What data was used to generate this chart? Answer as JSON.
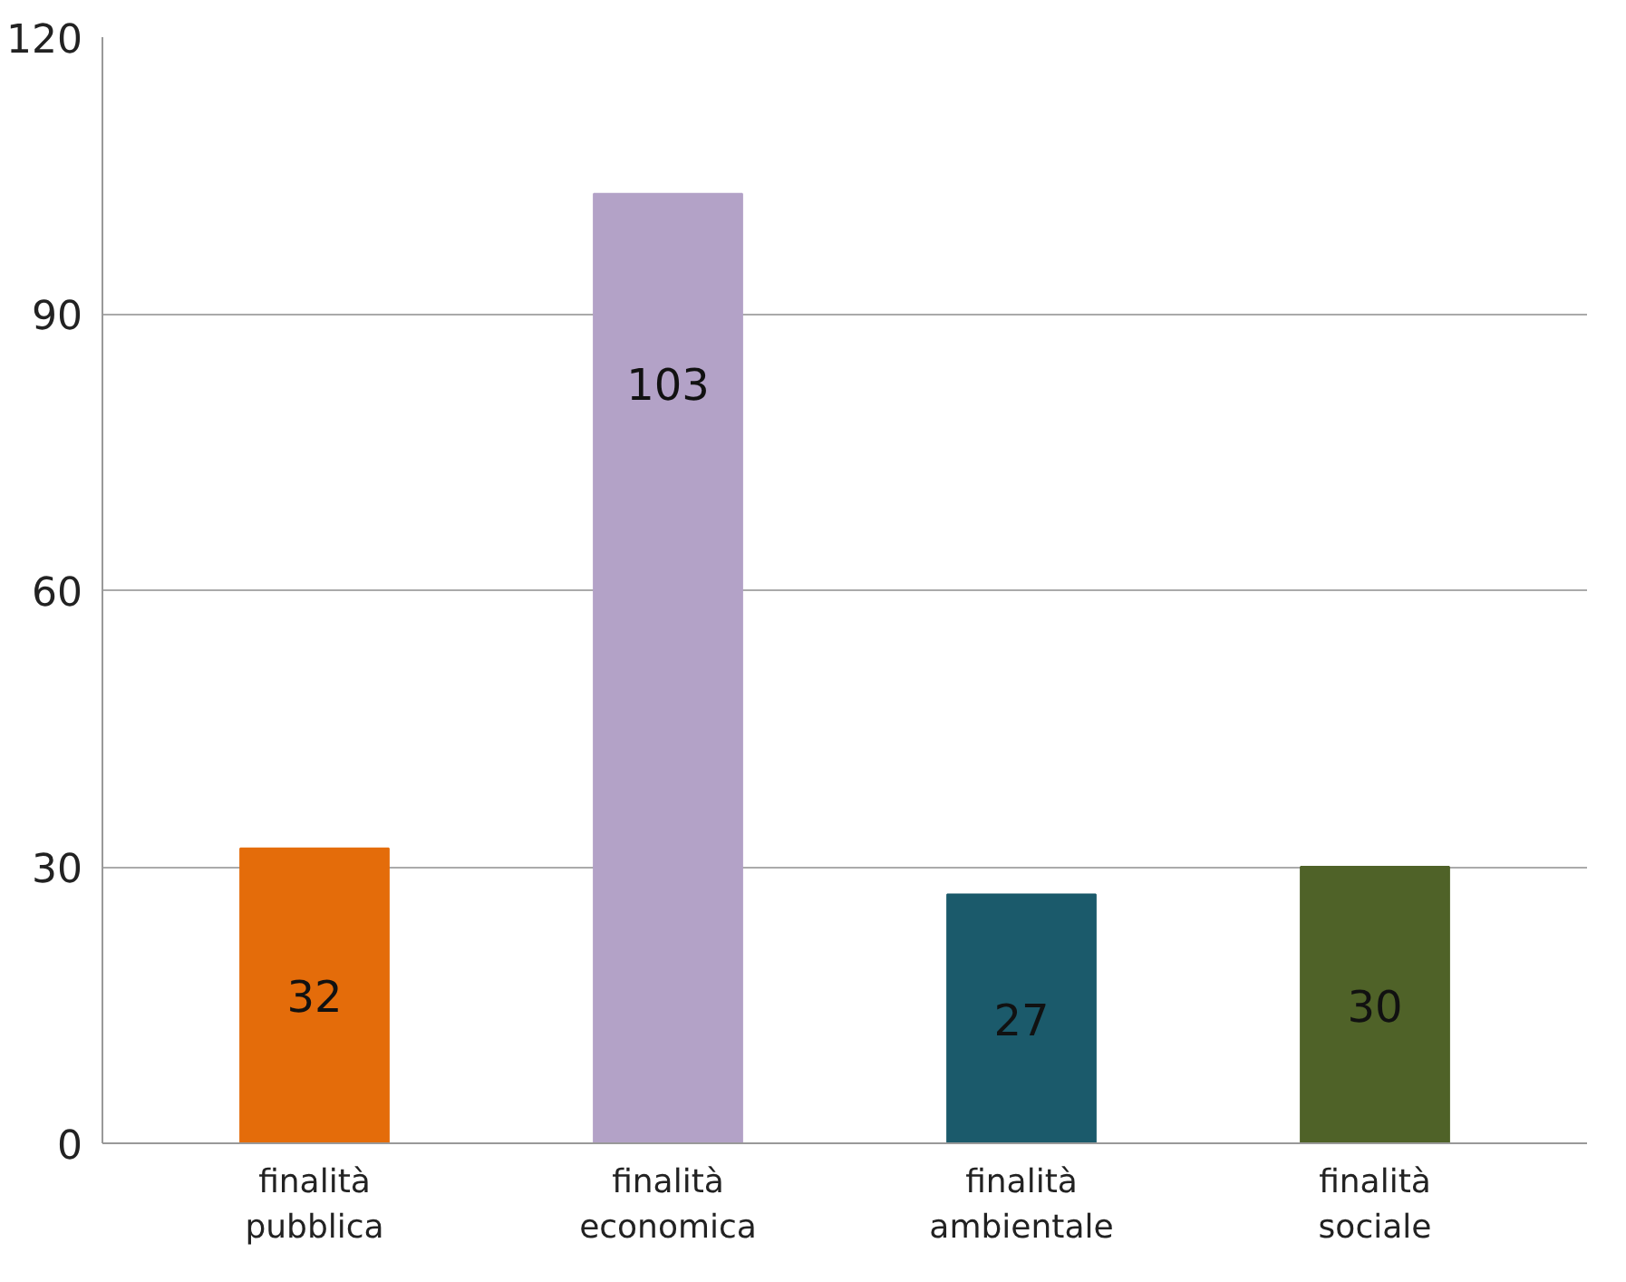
{
  "chart_data": {
    "type": "bar",
    "categories": [
      "finalità\npubblica",
      "finalità\neconomica",
      "finalità\nambientale",
      "finalità\nsociale"
    ],
    "values": [
      32,
      103,
      27,
      30
    ],
    "colors": [
      "#e46c0a",
      "#b3a2c7",
      "#1b5a6b",
      "#4f6228"
    ],
    "ylim": [
      0,
      120
    ],
    "yticks": [
      0,
      30,
      60,
      90,
      120
    ],
    "grid": "y",
    "data_labels": true
  }
}
